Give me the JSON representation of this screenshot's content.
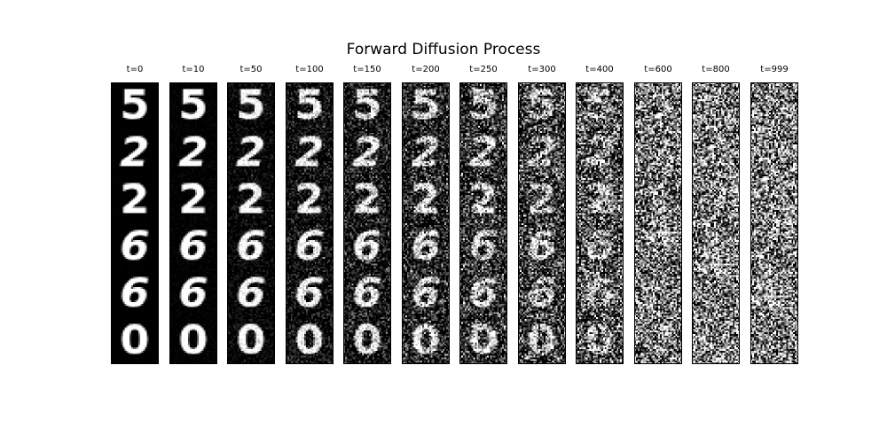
{
  "title": "Forward Diffusion Process",
  "timesteps": [
    {
      "label": "t=0",
      "t": 0
    },
    {
      "label": "t=10",
      "t": 10
    },
    {
      "label": "t=50",
      "t": 50
    },
    {
      "label": "t=100",
      "t": 100
    },
    {
      "label": "t=150",
      "t": 150
    },
    {
      "label": "t=200",
      "t": 200
    },
    {
      "label": "t=250",
      "t": 250
    },
    {
      "label": "t=300",
      "t": 300
    },
    {
      "label": "t=400",
      "t": 400
    },
    {
      "label": "t=600",
      "t": 600
    },
    {
      "label": "t=800",
      "t": 800
    },
    {
      "label": "t=999",
      "t": 999
    }
  ],
  "digits": [
    "5",
    "2",
    "2",
    "6",
    "6",
    "0"
  ]
}
